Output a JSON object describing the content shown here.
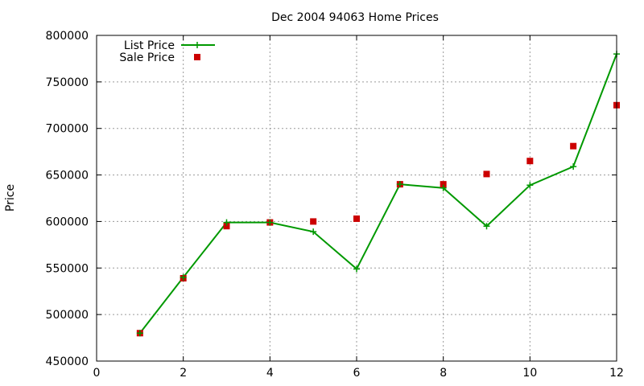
{
  "chart_data": {
    "type": "line",
    "title": "Dec 2004 94063 Home Prices",
    "xlabel": "",
    "ylabel": "Price",
    "xlim": [
      0,
      12
    ],
    "ylim": [
      450000,
      800000
    ],
    "x_ticks": [
      "0",
      "2",
      "4",
      "6",
      "8",
      "10",
      "12"
    ],
    "y_ticks": [
      "450000",
      "500000",
      "550000",
      "600000",
      "650000",
      "700000",
      "750000",
      "800000"
    ],
    "grid": true,
    "legend_position": "top-left",
    "series": [
      {
        "name": "List Price",
        "style": "line+cross",
        "color": "#009900",
        "x": [
          1,
          2,
          3,
          4,
          5,
          6,
          7,
          8,
          9,
          10,
          11,
          12
        ],
        "y": [
          480000,
          540000,
          599000,
          599000,
          589000,
          549000,
          640000,
          636000,
          595000,
          639000,
          659000,
          780000
        ]
      },
      {
        "name": "Sale Price",
        "style": "square",
        "color": "#cc0000",
        "x": [
          1,
          2,
          3,
          4,
          5,
          6,
          7,
          8,
          9,
          10,
          11,
          12
        ],
        "y": [
          480000,
          539000,
          595000,
          599000,
          600000,
          603000,
          640000,
          640000,
          651000,
          665000,
          681000,
          725000
        ]
      }
    ]
  }
}
